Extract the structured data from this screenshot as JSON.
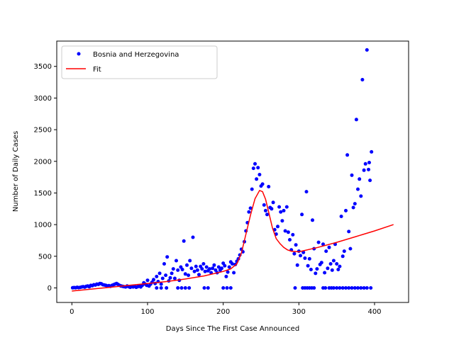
{
  "chart_data": {
    "type": "scatter",
    "xlabel": "Days Since The First Case Announced",
    "ylabel": "Number of Daily Cases",
    "xlim": [
      -20,
      445
    ],
    "ylim": [
      -230,
      3900
    ],
    "xticks": [
      0,
      100,
      200,
      300,
      400
    ],
    "yticks": [
      0,
      500,
      1000,
      1500,
      2000,
      2500,
      3000,
      3500
    ],
    "grid": false,
    "legend": "top-left",
    "colors": {
      "points": "#0000ff",
      "fit": "#ff0000"
    },
    "series": [
      {
        "name": "Bosnia and Herzegovina",
        "kind": "points",
        "points": [
          [
            1,
            2
          ],
          [
            3,
            5
          ],
          [
            5,
            3
          ],
          [
            7,
            10
          ],
          [
            9,
            4
          ],
          [
            11,
            8
          ],
          [
            13,
            15
          ],
          [
            15,
            20
          ],
          [
            17,
            12
          ],
          [
            19,
            25
          ],
          [
            21,
            30
          ],
          [
            23,
            18
          ],
          [
            25,
            40
          ],
          [
            27,
            35
          ],
          [
            29,
            50
          ],
          [
            31,
            45
          ],
          [
            33,
            60
          ],
          [
            35,
            55
          ],
          [
            37,
            70
          ],
          [
            39,
            65
          ],
          [
            41,
            50
          ],
          [
            43,
            45
          ],
          [
            45,
            40
          ],
          [
            47,
            30
          ],
          [
            49,
            35
          ],
          [
            51,
            25
          ],
          [
            53,
            40
          ],
          [
            55,
            50
          ],
          [
            57,
            60
          ],
          [
            59,
            70
          ],
          [
            61,
            55
          ],
          [
            63,
            40
          ],
          [
            65,
            30
          ],
          [
            67,
            25
          ],
          [
            69,
            20
          ],
          [
            71,
            15
          ],
          [
            73,
            30
          ],
          [
            75,
            20
          ],
          [
            77,
            10
          ],
          [
            79,
            20
          ],
          [
            81,
            15
          ],
          [
            83,
            25
          ],
          [
            85,
            10
          ],
          [
            87,
            20
          ],
          [
            89,
            30
          ],
          [
            91,
            15
          ],
          [
            93,
            40
          ],
          [
            95,
            80
          ],
          [
            97,
            60
          ],
          [
            99,
            40
          ],
          [
            100,
            120
          ],
          [
            102,
            30
          ],
          [
            104,
            60
          ],
          [
            106,
            90
          ],
          [
            108,
            130
          ],
          [
            110,
            70
          ],
          [
            112,
            180
          ],
          [
            114,
            100
          ],
          [
            116,
            230
          ],
          [
            118,
            60
          ],
          [
            120,
            150
          ],
          [
            122,
            380
          ],
          [
            124,
            200
          ],
          [
            126,
            490
          ],
          [
            128,
            110
          ],
          [
            130,
            160
          ],
          [
            132,
            230
          ],
          [
            134,
            300
          ],
          [
            136,
            150
          ],
          [
            138,
            430
          ],
          [
            140,
            280
          ],
          [
            142,
            120
          ],
          [
            144,
            330
          ],
          [
            146,
            290
          ],
          [
            148,
            740
          ],
          [
            150,
            220
          ],
          [
            152,
            360
          ],
          [
            154,
            200
          ],
          [
            156,
            430
          ],
          [
            158,
            310
          ],
          [
            160,
            800
          ],
          [
            162,
            260
          ],
          [
            164,
            340
          ],
          [
            166,
            280
          ],
          [
            168,
            210
          ],
          [
            170,
            340
          ],
          [
            172,
            300
          ],
          [
            174,
            380
          ],
          [
            176,
            260
          ],
          [
            178,
            330
          ],
          [
            180,
            270
          ],
          [
            182,
            300
          ],
          [
            184,
            240
          ],
          [
            186,
            310
          ],
          [
            188,
            360
          ],
          [
            190,
            280
          ],
          [
            192,
            240
          ],
          [
            194,
            330
          ],
          [
            196,
            280
          ],
          [
            198,
            310
          ],
          [
            200,
            390
          ],
          [
            202,
            350
          ],
          [
            204,
            180
          ],
          [
            206,
            250
          ],
          [
            208,
            330
          ],
          [
            210,
            410
          ],
          [
            212,
            380
          ],
          [
            214,
            240
          ],
          [
            216,
            370
          ],
          [
            218,
            420
          ],
          [
            220,
            460
          ],
          [
            222,
            520
          ],
          [
            224,
            610
          ],
          [
            226,
            570
          ],
          [
            228,
            730
          ],
          [
            230,
            900
          ],
          [
            232,
            1030
          ],
          [
            234,
            1200
          ],
          [
            236,
            1260
          ],
          [
            238,
            1560
          ],
          [
            240,
            1890
          ],
          [
            242,
            1960
          ],
          [
            244,
            1720
          ],
          [
            246,
            1900
          ],
          [
            248,
            1790
          ],
          [
            250,
            1610
          ],
          [
            252,
            1640
          ],
          [
            254,
            1310
          ],
          [
            256,
            1220
          ],
          [
            258,
            1160
          ],
          [
            260,
            1600
          ],
          [
            262,
            1270
          ],
          [
            264,
            1250
          ],
          [
            266,
            1350
          ],
          [
            268,
            920
          ],
          [
            270,
            850
          ],
          [
            272,
            970
          ],
          [
            274,
            1280
          ],
          [
            276,
            1200
          ],
          [
            278,
            1060
          ],
          [
            280,
            1220
          ],
          [
            282,
            900
          ],
          [
            284,
            1280
          ],
          [
            286,
            880
          ],
          [
            288,
            760
          ],
          [
            290,
            600
          ],
          [
            292,
            840
          ],
          [
            294,
            540
          ],
          [
            296,
            680
          ],
          [
            298,
            360
          ],
          [
            300,
            580
          ],
          [
            302,
            510
          ],
          [
            304,
            1160
          ],
          [
            306,
            560
          ],
          [
            308,
            470
          ],
          [
            310,
            1520
          ],
          [
            312,
            350
          ],
          [
            314,
            460
          ],
          [
            316,
            290
          ],
          [
            318,
            1070
          ],
          [
            320,
            620
          ],
          [
            322,
            230
          ],
          [
            324,
            300
          ],
          [
            326,
            720
          ],
          [
            328,
            370
          ],
          [
            330,
            400
          ],
          [
            332,
            690
          ],
          [
            334,
            240
          ],
          [
            336,
            580
          ],
          [
            338,
            310
          ],
          [
            340,
            640
          ],
          [
            342,
            380
          ],
          [
            344,
            280
          ],
          [
            346,
            430
          ],
          [
            348,
            690
          ],
          [
            350,
            380
          ],
          [
            352,
            290
          ],
          [
            354,
            340
          ],
          [
            356,
            1130
          ],
          [
            358,
            500
          ],
          [
            360,
            580
          ],
          [
            362,
            1220
          ],
          [
            364,
            2100
          ],
          [
            366,
            890
          ],
          [
            368,
            620
          ],
          [
            370,
            1780
          ],
          [
            372,
            1270
          ],
          [
            374,
            1330
          ],
          [
            376,
            2660
          ],
          [
            378,
            1560
          ],
          [
            380,
            1720
          ],
          [
            382,
            1450
          ],
          [
            384,
            3290
          ],
          [
            386,
            1860
          ],
          [
            388,
            1960
          ],
          [
            390,
            3760
          ],
          [
            392,
            1870
          ],
          [
            393,
            1980
          ],
          [
            394,
            1700
          ],
          [
            396,
            2150
          ],
          [
            140,
            0
          ],
          [
            145,
            0
          ],
          [
            150,
            0
          ],
          [
            155,
            0
          ],
          [
            175,
            0
          ],
          [
            180,
            0
          ],
          [
            200,
            0
          ],
          [
            205,
            0
          ],
          [
            210,
            0
          ],
          [
            295,
            0
          ],
          [
            305,
            0
          ],
          [
            308,
            0
          ],
          [
            311,
            0
          ],
          [
            314,
            0
          ],
          [
            317,
            0
          ],
          [
            320,
            0
          ],
          [
            332,
            0
          ],
          [
            335,
            0
          ],
          [
            340,
            0
          ],
          [
            343,
            0
          ],
          [
            346,
            0
          ],
          [
            350,
            0
          ],
          [
            354,
            0
          ],
          [
            358,
            0
          ],
          [
            362,
            0
          ],
          [
            366,
            0
          ],
          [
            370,
            0
          ],
          [
            374,
            0
          ],
          [
            378,
            0
          ],
          [
            382,
            0
          ],
          [
            386,
            0
          ],
          [
            390,
            0
          ],
          [
            395,
            0
          ],
          [
            112,
            0
          ],
          [
            118,
            0
          ],
          [
            125,
            0
          ]
        ]
      },
      {
        "name": "Fit",
        "kind": "line",
        "points": [
          [
            0,
            -50
          ],
          [
            25,
            -20
          ],
          [
            50,
            10
          ],
          [
            75,
            40
          ],
          [
            100,
            70
          ],
          [
            125,
            100
          ],
          [
            150,
            140
          ],
          [
            175,
            190
          ],
          [
            200,
            260
          ],
          [
            210,
            300
          ],
          [
            218,
            380
          ],
          [
            224,
            550
          ],
          [
            230,
            850
          ],
          [
            236,
            1150
          ],
          [
            242,
            1410
          ],
          [
            248,
            1540
          ],
          [
            252,
            1520
          ],
          [
            256,
            1400
          ],
          [
            260,
            1200
          ],
          [
            265,
            950
          ],
          [
            270,
            780
          ],
          [
            275,
            700
          ],
          [
            280,
            640
          ],
          [
            285,
            600
          ],
          [
            290,
            580
          ],
          [
            300,
            570
          ],
          [
            325,
            640
          ],
          [
            350,
            720
          ],
          [
            375,
            810
          ],
          [
            400,
            900
          ],
          [
            425,
            1000
          ]
        ]
      }
    ]
  }
}
